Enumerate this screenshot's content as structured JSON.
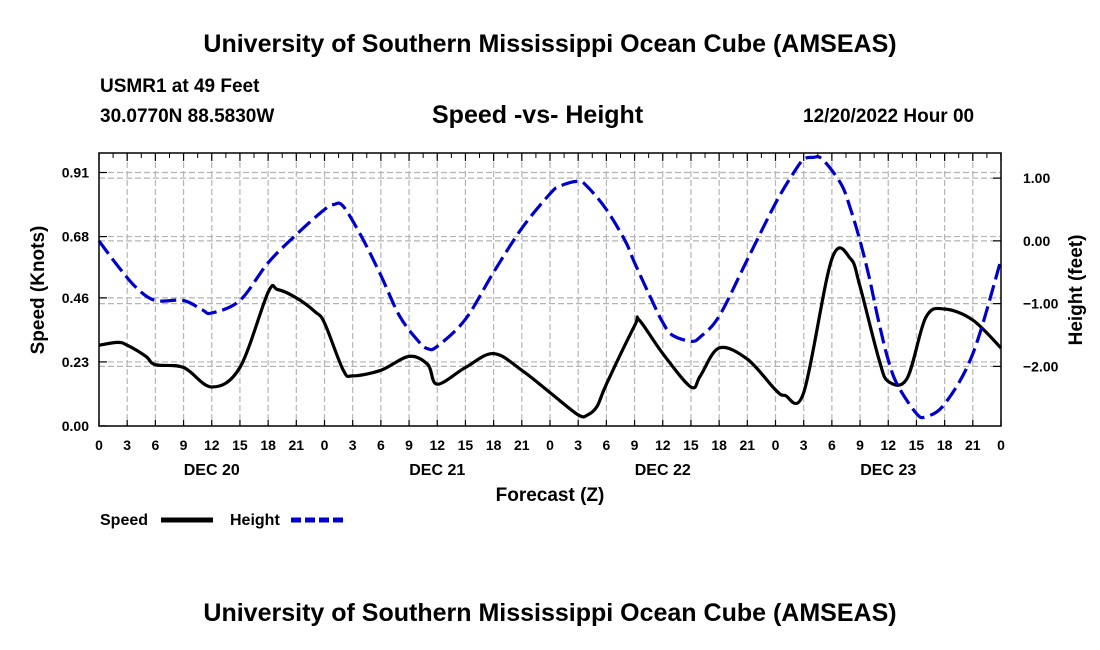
{
  "header": {
    "title_top": "University of Southern Mississippi Ocean Cube (AMSEAS)",
    "title_bottom": "University of Southern Mississippi Ocean Cube (AMSEAS)",
    "station": "USMR1 at 49 Feet",
    "coords": "30.0770N  88.5830W",
    "run_time": "12/20/2022 Hour 00"
  },
  "colors": {
    "speed": "#000000",
    "height": "#0000cc",
    "grid": "#b4b4b4"
  },
  "chart_data": {
    "type": "line",
    "title": "Speed -vs- Height",
    "xlabel": "Forecast (Z)",
    "ylabel": "Speed (Knots)",
    "y2label": "Height (feet)",
    "xlim": [
      0,
      96
    ],
    "ylim": [
      0,
      0.98
    ],
    "y2lim": [
      -2.95,
      1.4
    ],
    "x_ticks": [
      0,
      3,
      6,
      9,
      12,
      15,
      18,
      21,
      24,
      27,
      30,
      33,
      36,
      39,
      42,
      45,
      48,
      51,
      54,
      57,
      60,
      63,
      66,
      69,
      72,
      75,
      78,
      81,
      84,
      87,
      90,
      93,
      96
    ],
    "x_tick_labels": [
      "0",
      "3",
      "6",
      "9",
      "12",
      "15",
      "18",
      "21",
      "0",
      "3",
      "6",
      "9",
      "12",
      "15",
      "18",
      "21",
      "0",
      "3",
      "6",
      "9",
      "12",
      "15",
      "18",
      "21",
      "0",
      "3",
      "6",
      "9",
      "12",
      "15",
      "18",
      "21",
      "0"
    ],
    "date_labels": [
      {
        "x": 12,
        "label": "DEC 20"
      },
      {
        "x": 36,
        "label": "DEC 21"
      },
      {
        "x": 60,
        "label": "DEC 22"
      },
      {
        "x": 84,
        "label": "DEC 23"
      }
    ],
    "y_ticks": [
      0,
      0.23,
      0.46,
      0.68,
      0.91
    ],
    "y_tick_labels": [
      "0.00",
      "0.23",
      "0.46",
      "0.68",
      "0.91"
    ],
    "y2_ticks": [
      1,
      0,
      -1,
      -2
    ],
    "y2_tick_labels": [
      "1.00",
      "0.00",
      "−1.00",
      "−2.00"
    ],
    "series": [
      {
        "name": "Speed",
        "axis": "left",
        "style": "solid",
        "x": [
          0,
          2,
          3,
          5,
          6,
          9,
          12,
          15,
          18,
          19,
          21,
          23,
          24,
          26,
          27,
          30,
          33,
          35,
          36,
          39,
          42,
          45,
          48,
          51,
          52,
          53,
          54,
          57,
          57.5,
          60,
          63,
          64,
          66,
          69,
          72,
          73,
          75,
          78,
          80,
          81,
          83,
          84,
          86,
          88,
          90,
          93,
          96
        ],
        "values": [
          0.29,
          0.3,
          0.29,
          0.25,
          0.22,
          0.21,
          0.14,
          0.21,
          0.48,
          0.49,
          0.46,
          0.41,
          0.37,
          0.2,
          0.18,
          0.2,
          0.25,
          0.22,
          0.15,
          0.21,
          0.26,
          0.2,
          0.12,
          0.04,
          0.04,
          0.07,
          0.15,
          0.36,
          0.38,
          0.26,
          0.14,
          0.18,
          0.28,
          0.24,
          0.13,
          0.11,
          0.12,
          0.6,
          0.6,
          0.5,
          0.24,
          0.16,
          0.17,
          0.39,
          0.42,
          0.38,
          0.28
        ]
      },
      {
        "name": "Height",
        "axis": "right",
        "style": "dashed",
        "x": [
          0,
          2,
          4,
          6,
          9,
          11,
          12,
          15,
          18,
          21,
          24,
          25,
          26,
          28,
          30,
          32,
          34,
          35,
          36,
          39,
          42,
          45,
          48,
          49,
          51,
          52,
          54,
          56,
          57,
          59,
          60,
          61,
          63,
          64,
          66,
          69,
          72,
          74,
          75,
          76,
          77,
          79,
          80,
          81,
          82,
          83,
          84,
          85,
          87,
          88,
          90,
          93,
          96
        ],
        "values": [
          0,
          -0.4,
          -0.75,
          -0.95,
          -0.95,
          -1.1,
          -1.15,
          -0.95,
          -0.35,
          0.1,
          0.5,
          0.58,
          0.55,
          0.05,
          -0.55,
          -1.2,
          -1.6,
          -1.72,
          -1.68,
          -1.25,
          -0.5,
          0.2,
          0.75,
          0.87,
          0.95,
          0.86,
          0.5,
          0.0,
          -0.35,
          -1.0,
          -1.3,
          -1.5,
          -1.6,
          -1.53,
          -1.2,
          -0.3,
          0.6,
          1.1,
          1.3,
          1.33,
          1.3,
          0.9,
          0.5,
          0.0,
          -0.6,
          -1.3,
          -1.9,
          -2.3,
          -2.75,
          -2.8,
          -2.6,
          -1.8,
          -0.3
        ]
      }
    ],
    "legend": {
      "position": "bottom-left",
      "entries": [
        "Speed",
        "Height"
      ]
    }
  }
}
